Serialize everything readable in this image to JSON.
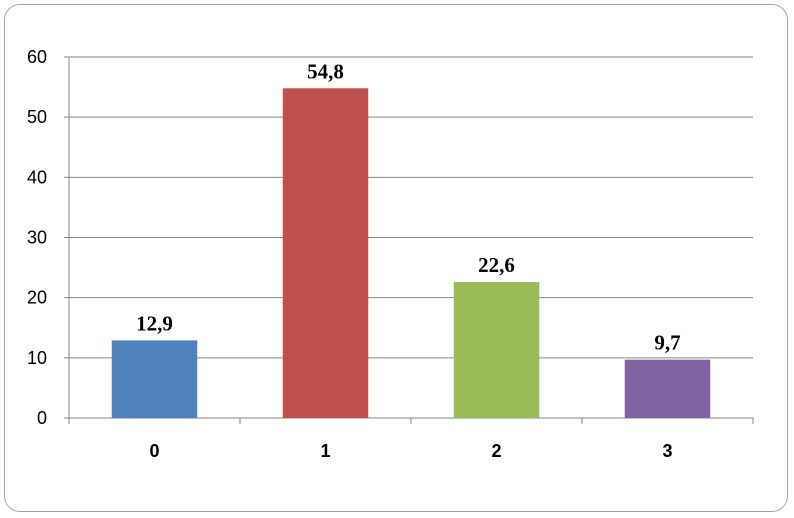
{
  "chart_data": {
    "type": "bar",
    "categories": [
      "0",
      "1",
      "2",
      "3"
    ],
    "values": [
      12.9,
      54.8,
      22.6,
      9.7
    ],
    "data_labels": [
      "12,9",
      "54,8",
      "22,6",
      "9,7"
    ],
    "colors": [
      "#4f81bd",
      "#c0504d",
      "#9bbb59",
      "#8064a2"
    ],
    "ylim": [
      0,
      60
    ],
    "yticks": [
      0,
      10,
      20,
      30,
      40,
      50,
      60
    ],
    "grid": true,
    "title": "",
    "xlabel": "",
    "ylabel": ""
  }
}
